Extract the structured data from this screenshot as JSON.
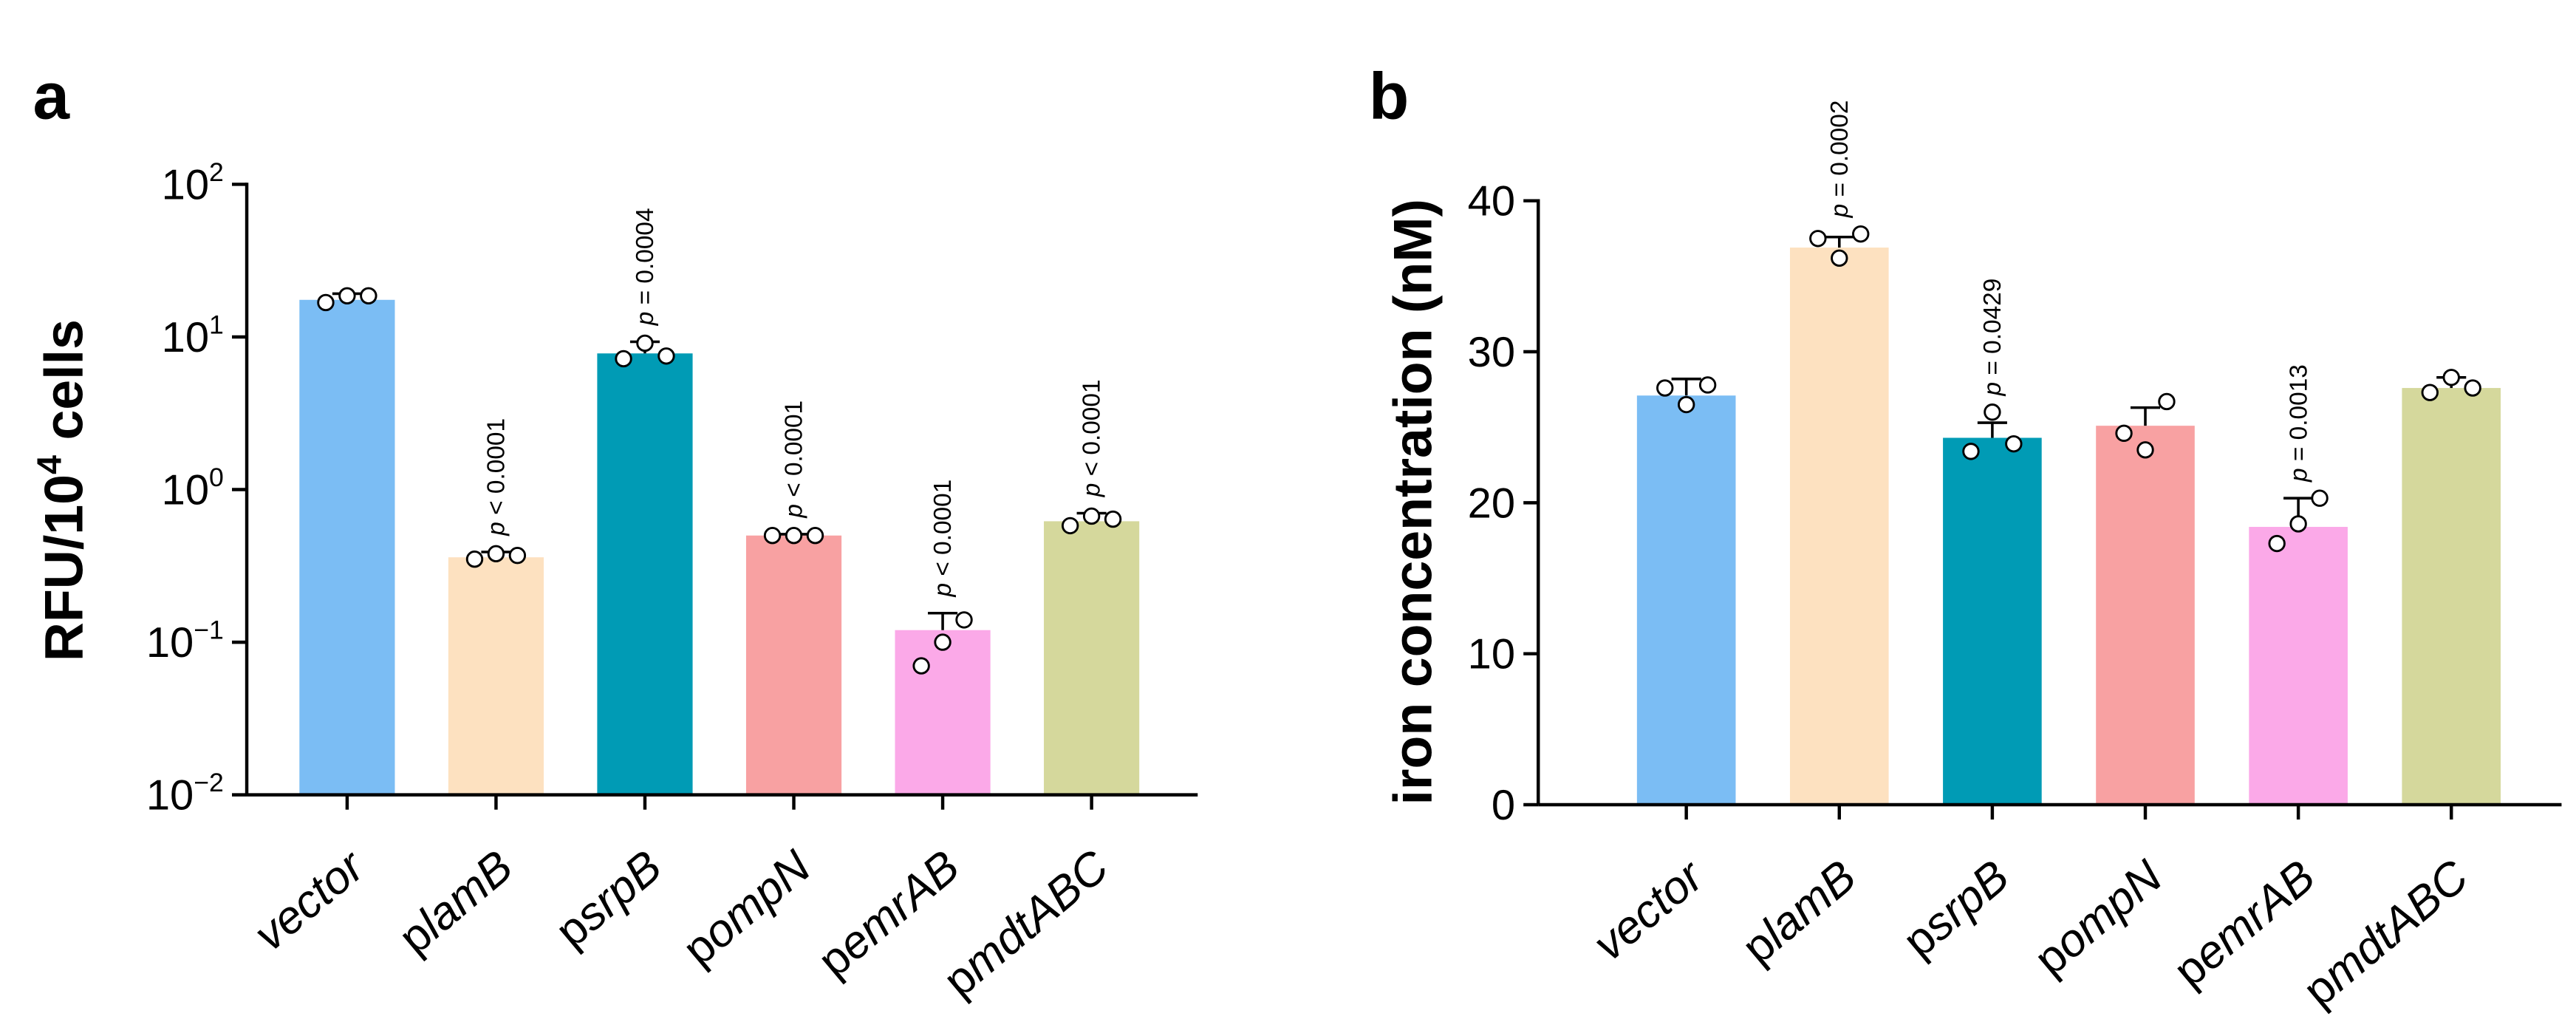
{
  "panels": [
    {
      "label": "a",
      "chart_data": {
        "type": "bar",
        "yscale": "log",
        "ylim": [
          0.01,
          100
        ],
        "yticks": [
          {
            "value": 100,
            "base": "10",
            "exp": "2"
          },
          {
            "value": 10,
            "base": "10",
            "exp": "1"
          },
          {
            "value": 1,
            "base": "10",
            "exp": "0"
          },
          {
            "value": 0.1,
            "base": "10",
            "exp": "−1"
          },
          {
            "value": 0.01,
            "base": "10",
            "exp": "−2"
          }
        ],
        "ylabel": {
          "pre": "RFU/10",
          "sup": "4",
          "post": " cells"
        },
        "xlabel": "",
        "title": "",
        "grid": false,
        "categories": [
          {
            "pre": "",
            "it": "vector"
          },
          {
            "pre": "p",
            "it": "lamB"
          },
          {
            "pre": "p",
            "it": "srpB"
          },
          {
            "pre": "p",
            "it": "ompN"
          },
          {
            "pre": "p",
            "it": "emrAB"
          },
          {
            "pre": "p",
            "it": "mdtABC"
          }
        ],
        "values": [
          17.5,
          0.36,
          7.8,
          0.5,
          0.12,
          0.62
        ],
        "errors": [
          19.2,
          0.39,
          9.3,
          0.51,
          0.155,
          0.7
        ],
        "points": [
          [
            16.8,
            18.6,
            18.6
          ],
          [
            0.35,
            0.38,
            0.37
          ],
          [
            7.2,
            9.1,
            7.5
          ],
          [
            0.5,
            0.5,
            0.5
          ],
          [
            0.07,
            0.1,
            0.14
          ],
          [
            0.58,
            0.67,
            0.64
          ]
        ],
        "pvalues": [
          "",
          "p < 0.0001",
          "p = 0.0004",
          "p < 0.0001",
          "p < 0.0001",
          "p < 0.0001"
        ],
        "colors": [
          "#7bbdf4",
          "#fde1c0",
          "#009bb5",
          "#f8a1a2",
          "#fba9e8",
          "#d5d89c"
        ]
      }
    },
    {
      "label": "b",
      "chart_data": {
        "type": "bar",
        "yscale": "linear",
        "ylim": [
          0,
          40
        ],
        "yticks": [
          {
            "value": 0,
            "text": "0"
          },
          {
            "value": 10,
            "text": "10"
          },
          {
            "value": 20,
            "text": "20"
          },
          {
            "value": 30,
            "text": "30"
          },
          {
            "value": 40,
            "text": "40"
          }
        ],
        "ylabel": {
          "pre": "iron concentration (nM)",
          "sup": "",
          "post": ""
        },
        "xlabel": "",
        "title": "",
        "grid": false,
        "categories": [
          {
            "pre": "",
            "it": "vector"
          },
          {
            "pre": "p",
            "it": "lamB"
          },
          {
            "pre": "p",
            "it": "srpB"
          },
          {
            "pre": "p",
            "it": "ompN"
          },
          {
            "pre": "p",
            "it": "emrAB"
          },
          {
            "pre": "p",
            "it": "mdtABC"
          }
        ],
        "values": [
          27.1,
          36.9,
          24.3,
          25.1,
          18.4,
          27.6
        ],
        "errors": [
          28.2,
          37.6,
          25.3,
          26.3,
          20.3,
          28.3
        ],
        "points": [
          [
            27.6,
            26.5,
            27.8
          ],
          [
            37.5,
            36.2,
            37.8
          ],
          [
            23.4,
            26.0,
            23.9
          ],
          [
            24.6,
            23.5,
            26.7
          ],
          [
            17.3,
            18.6,
            20.3
          ],
          [
            27.3,
            28.3,
            27.6
          ]
        ],
        "pvalues": [
          "",
          "p = 0.0002",
          "p = 0.0429",
          "",
          "p = 0.0013",
          ""
        ],
        "colors": [
          "#7bbdf4",
          "#fde1c0",
          "#009bb5",
          "#f8a1a2",
          "#fba9e8",
          "#d5d89c"
        ]
      }
    }
  ]
}
